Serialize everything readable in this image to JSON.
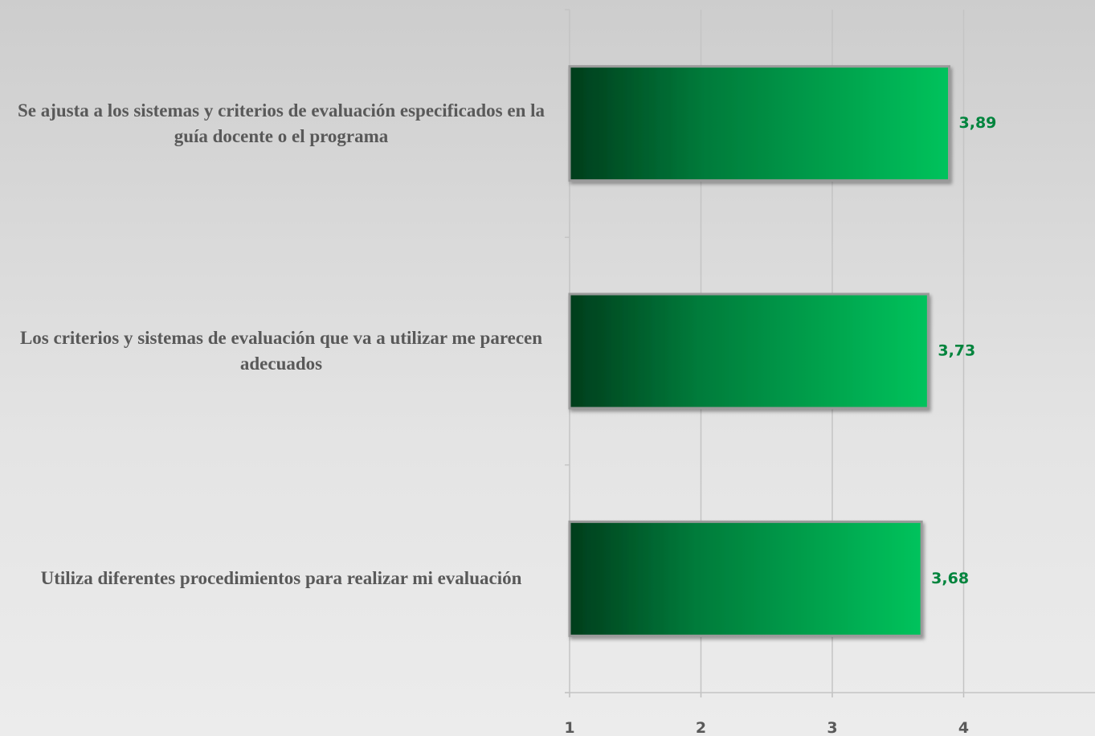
{
  "chart_data": {
    "type": "bar",
    "orientation": "horizontal",
    "categories": [
      "Se ajusta a los sistemas y criterios de evaluación especificados en la guía docente o el programa",
      "Los criterios y sistemas de evaluación que va a utilizar me parecen adecuados",
      "Utiliza diferentes procedimientos para realizar mi evaluación"
    ],
    "values": [
      3.89,
      3.73,
      3.68
    ],
    "value_labels": [
      "3,89",
      "3,73",
      "3,68"
    ],
    "color": "#00b050",
    "xlim": [
      1,
      5
    ],
    "xticks": [
      1,
      2,
      3,
      4
    ],
    "grid": true
  }
}
